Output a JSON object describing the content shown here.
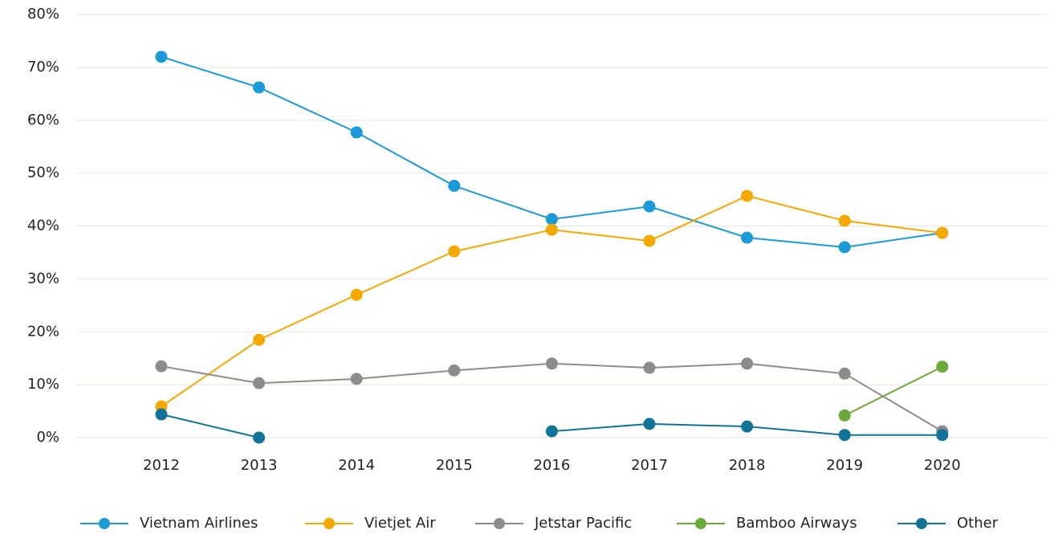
{
  "chart_data": {
    "type": "line",
    "categories": [
      "2012",
      "2013",
      "2014",
      "2015",
      "2016",
      "2017",
      "2018",
      "2019",
      "2020"
    ],
    "series": [
      {
        "name": "Vietnam Airlines",
        "color": "#1a9ad6",
        "values": [
          72,
          66.2,
          57.7,
          47.6,
          41.3,
          43.7,
          37.8,
          36,
          38.7
        ]
      },
      {
        "name": "Vietjet Air",
        "color": "#f5a800",
        "values": [
          5.9,
          18.5,
          27,
          35.2,
          39.3,
          37.2,
          45.7,
          41,
          38.7
        ]
      },
      {
        "name": "Jetstar Pacific",
        "color": "#8c8c8c",
        "values": [
          13.5,
          10.3,
          11.1,
          12.7,
          14,
          13.2,
          14,
          12.1,
          1.2
        ]
      },
      {
        "name": "Bamboo Airways",
        "color": "#6aaa3a",
        "values": [
          null,
          null,
          null,
          null,
          null,
          null,
          null,
          4.2,
          13.4
        ]
      },
      {
        "name": "Other",
        "color": "#0f7497",
        "values": [
          4.4,
          0,
          null,
          null,
          1.2,
          2.6,
          2.1,
          0.5,
          0.5
        ]
      }
    ],
    "ylim": [
      0,
      80
    ],
    "yticks": [
      {
        "value": 0,
        "label": "0%"
      },
      {
        "value": 10,
        "label": "10%"
      },
      {
        "value": 20,
        "label": "20%"
      },
      {
        "value": 30,
        "label": "30%"
      },
      {
        "value": 40,
        "label": "40%"
      },
      {
        "value": 50,
        "label": "50%"
      },
      {
        "value": 60,
        "label": "60%"
      },
      {
        "value": 70,
        "label": "70%"
      },
      {
        "value": 80,
        "label": "80%"
      }
    ],
    "grid": true,
    "legend": "bottom"
  }
}
